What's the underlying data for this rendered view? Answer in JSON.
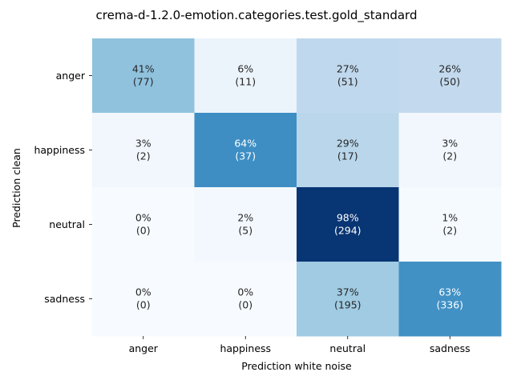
{
  "chart_data": {
    "type": "heatmap",
    "title": "crema-d-1.2.0-emotion.categories.test.gold_standard",
    "xlabel": "Prediction white noise",
    "ylabel": "Prediction clean",
    "x_categories": [
      "anger",
      "happiness",
      "neutral",
      "sadness"
    ],
    "y_categories": [
      "anger",
      "happiness",
      "neutral",
      "sadness"
    ],
    "percent": [
      [
        41,
        6,
        27,
        26
      ],
      [
        3,
        64,
        29,
        3
      ],
      [
        0,
        2,
        98,
        1
      ],
      [
        0,
        0,
        37,
        63
      ]
    ],
    "counts": [
      [
        77,
        11,
        51,
        50
      ],
      [
        2,
        37,
        17,
        2
      ],
      [
        0,
        5,
        294,
        2
      ],
      [
        0,
        0,
        195,
        336
      ]
    ],
    "colormap": "Blues",
    "colorbar": false,
    "grid": false
  }
}
